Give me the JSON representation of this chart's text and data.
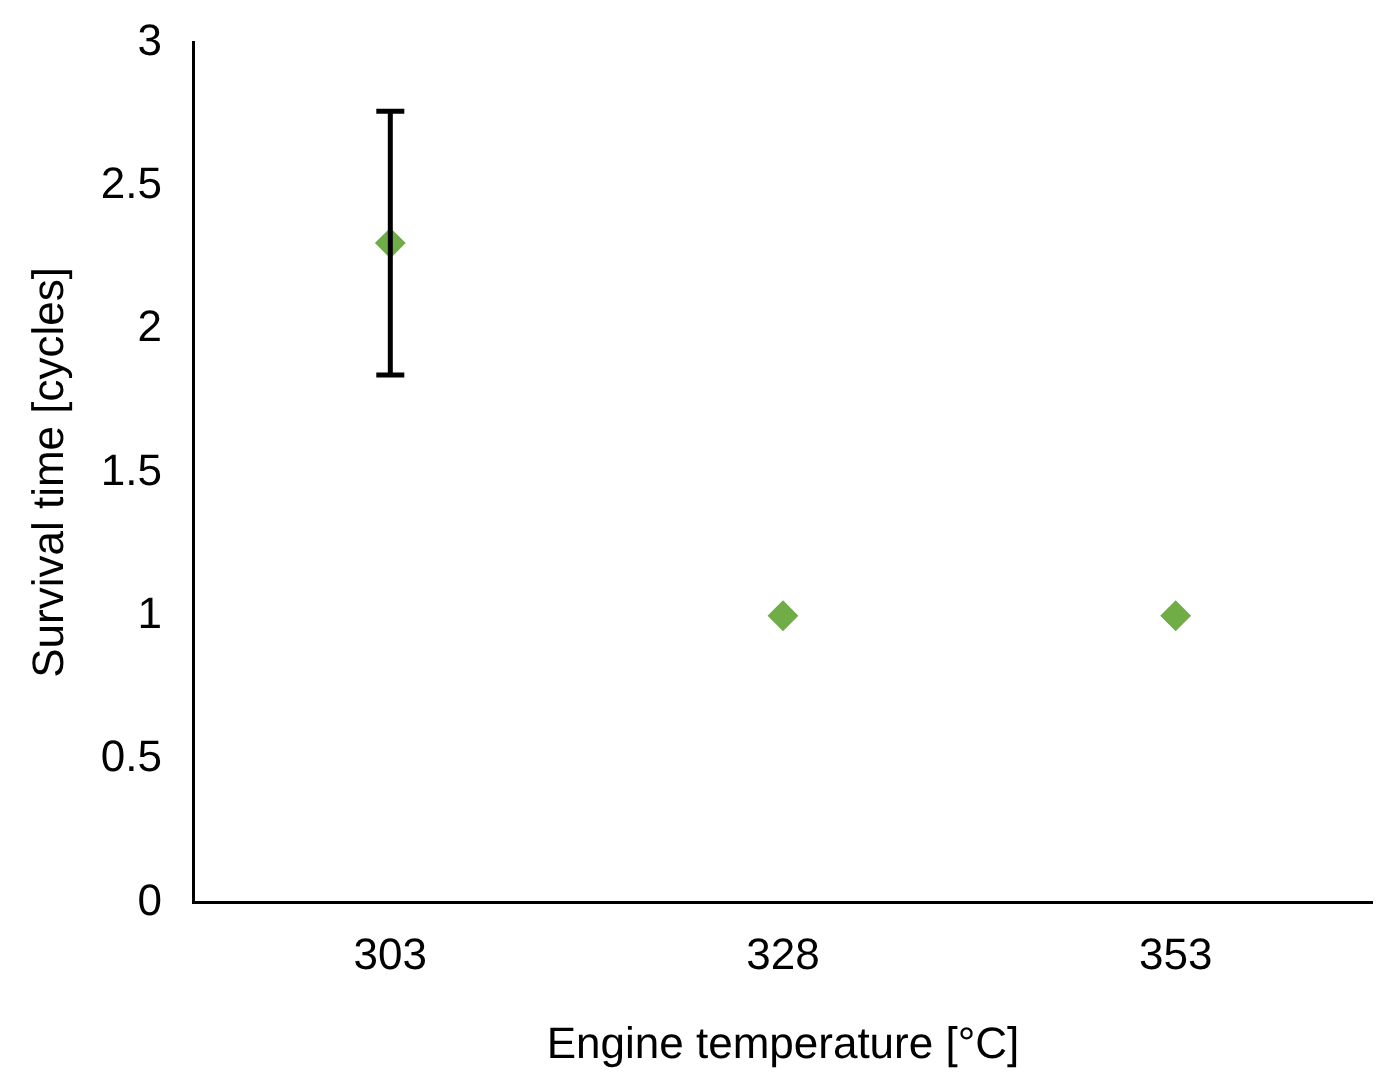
{
  "chart_data": {
    "type": "scatter",
    "xlabel": "Engine temperature [°C]",
    "ylabel": "Survival time [cycles]",
    "categories": [
      "303",
      "328",
      "353"
    ],
    "series": [
      {
        "color": "#70ad47",
        "values": [
          2.3,
          1,
          1
        ],
        "errors": [
          0.46,
          null,
          null
        ]
      }
    ],
    "ylim": [
      0,
      3
    ],
    "yticks": [
      0,
      0.5,
      1,
      1.5,
      2,
      2.5,
      3
    ],
    "grid": false,
    "legend": false,
    "marker": "diamond"
  }
}
